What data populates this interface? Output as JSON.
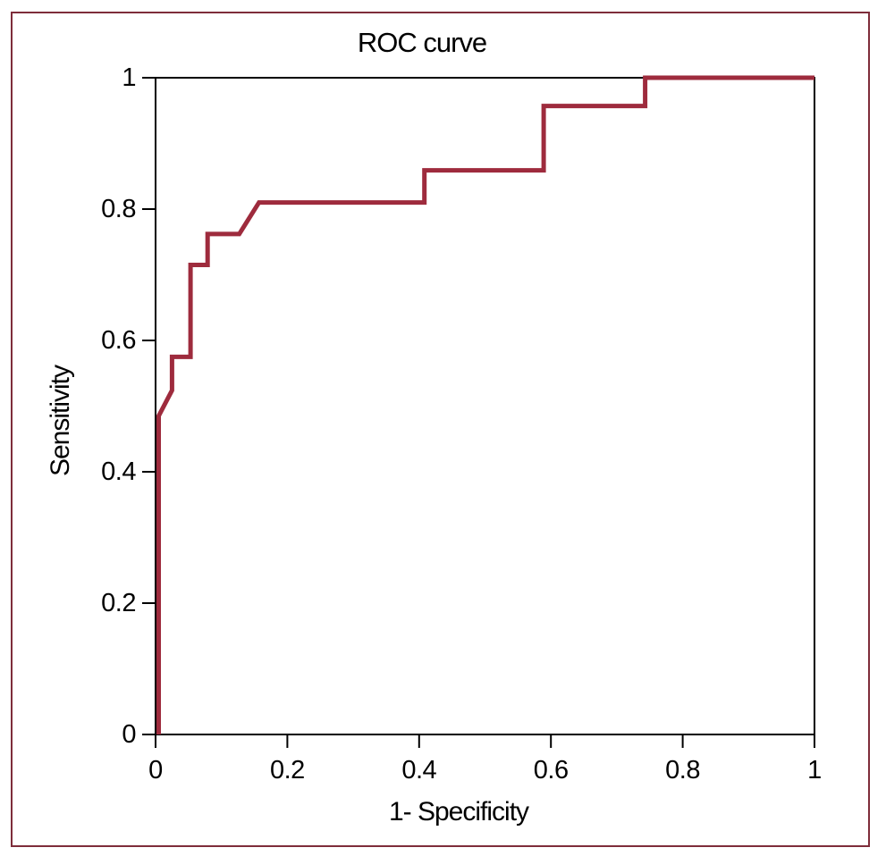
{
  "figure": {
    "title": "ROC curve",
    "x_axis_label": "1- Specificity",
    "y_axis_label": "Sensitivity"
  },
  "colors": {
    "curve": "#9e2b3d",
    "outer_border": "#7e2d3a",
    "axis": "#000000",
    "background": "#ffffff"
  },
  "chart_data": {
    "type": "line",
    "title": "ROC curve",
    "xlabel": "1- Specificity",
    "ylabel": "Sensitivity",
    "xlim": [
      0,
      1
    ],
    "ylim": [
      0,
      1
    ],
    "grid": false,
    "legend": "none",
    "x_ticks": [
      0,
      0.2,
      0.4,
      0.6,
      0.8,
      1
    ],
    "x_tick_labels": [
      "0",
      "0.2",
      "0.4",
      "0.6",
      "0.8",
      "1"
    ],
    "y_ticks": [
      0,
      0.2,
      0.4,
      0.6,
      0.8,
      1
    ],
    "y_tick_labels": [
      "0",
      "0.2",
      "0.4",
      "0.6",
      "0.8",
      "1"
    ],
    "series": [
      {
        "name": "ROC curve",
        "style": "step",
        "points": [
          [
            0,
            0
          ],
          [
            0,
            0.485
          ],
          [
            0.025,
            0.524
          ],
          [
            0.025,
            0.575
          ],
          [
            0.053,
            0.575
          ],
          [
            0.053,
            0.715
          ],
          [
            0.079,
            0.715
          ],
          [
            0.079,
            0.762
          ],
          [
            0.127,
            0.762
          ],
          [
            0.157,
            0.81
          ],
          [
            0.408,
            0.81
          ],
          [
            0.408,
            0.859
          ],
          [
            0.589,
            0.859
          ],
          [
            0.589,
            0.957
          ],
          [
            0.743,
            0.957
          ],
          [
            0.743,
            1
          ],
          [
            1,
            1
          ]
        ]
      }
    ]
  }
}
